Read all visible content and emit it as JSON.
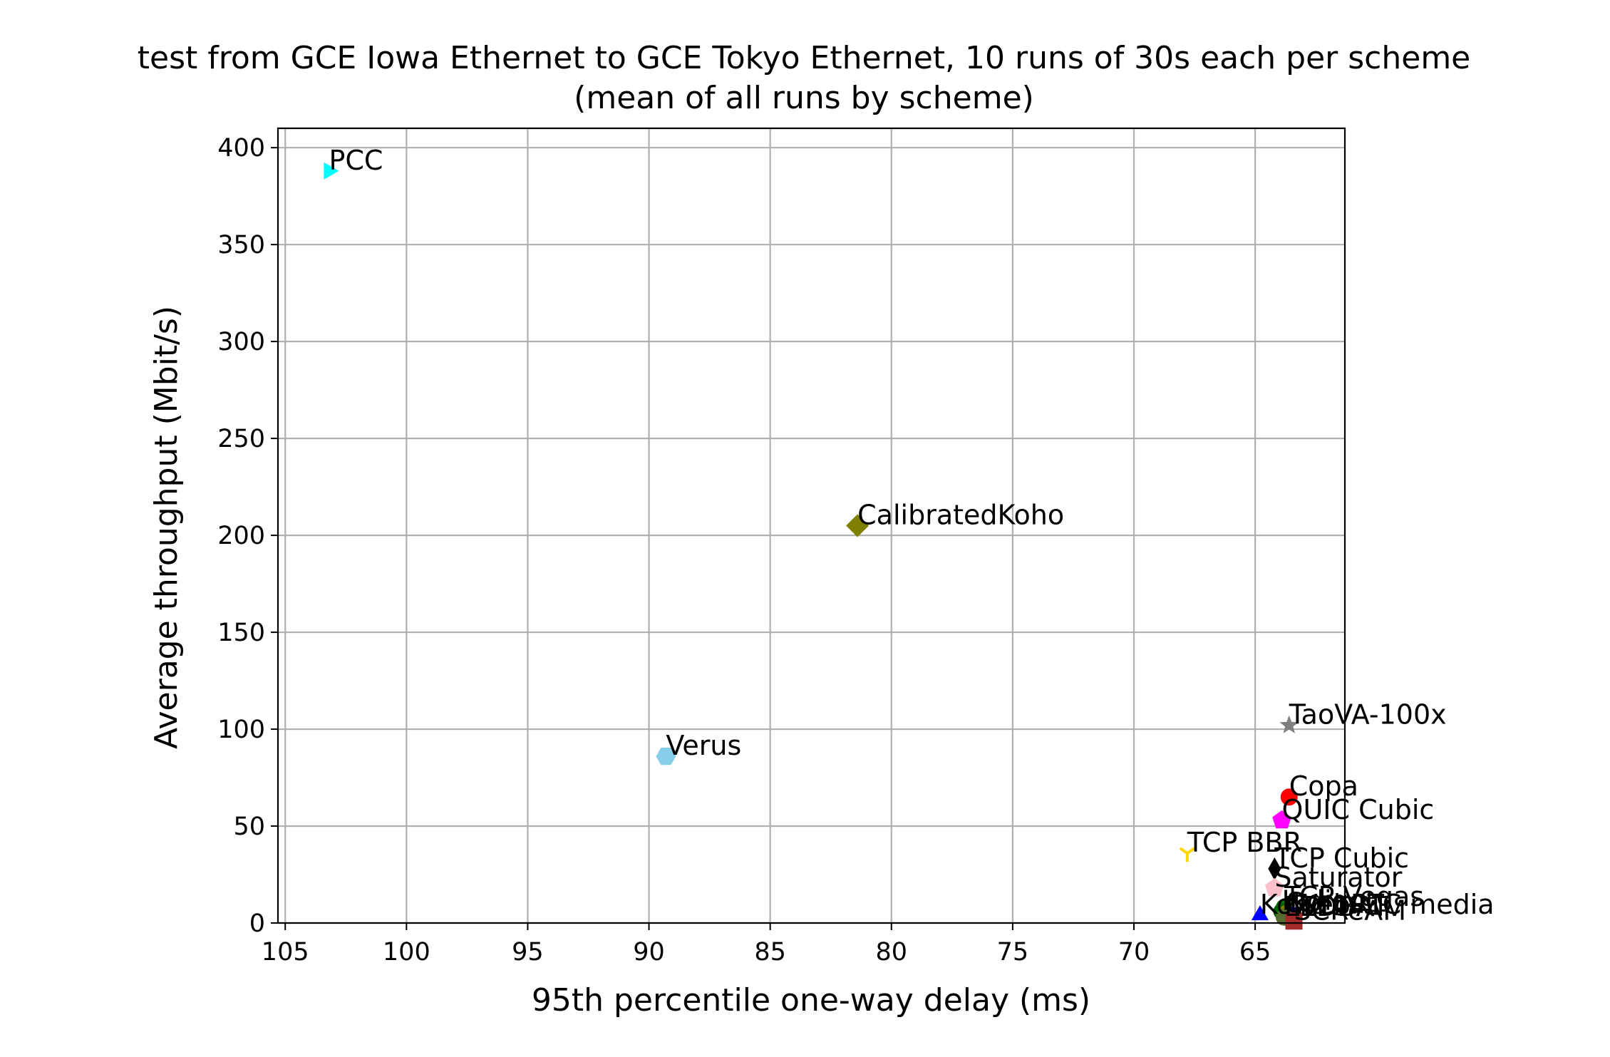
{
  "chart_data": {
    "type": "scatter",
    "title": "test from GCE Iowa Ethernet to GCE Tokyo Ethernet, 10 runs of 30s each per scheme",
    "subtitle": "(mean of all runs by scheme)",
    "xlabel": "95th percentile one-way delay (ms)",
    "ylabel": "Average throughput (Mbit/s)",
    "xlim": [
      105.3,
      61.3
    ],
    "ylim": [
      0,
      410
    ],
    "x_inverted": true,
    "grid": true,
    "xticks": [
      105,
      100,
      95,
      90,
      85,
      80,
      75,
      70,
      65
    ],
    "yticks": [
      0,
      50,
      100,
      150,
      200,
      250,
      300,
      350,
      400
    ],
    "series": [
      {
        "name": "PCC",
        "x": 103.2,
        "y": 388,
        "marker": "triangle-right",
        "color": "#00ffff"
      },
      {
        "name": "CalibratedKoho",
        "x": 81.4,
        "y": 205,
        "marker": "diamond",
        "color": "#808000"
      },
      {
        "name": "Verus",
        "x": 89.3,
        "y": 86,
        "marker": "hexagon",
        "color": "#87ceeb"
      },
      {
        "name": "TaoVA-100x",
        "x": 63.6,
        "y": 102,
        "marker": "star",
        "color": "#808080"
      },
      {
        "name": "Copa",
        "x": 63.6,
        "y": 65,
        "marker": "circle",
        "color": "#ff0000"
      },
      {
        "name": "QUIC Cubic",
        "x": 63.9,
        "y": 53,
        "marker": "pentagon",
        "color": "#ff00ff"
      },
      {
        "name": "TCP BBR",
        "x": 67.8,
        "y": 36,
        "marker": "tri-down",
        "color": "#ffd700"
      },
      {
        "name": "TCP Cubic",
        "x": 64.2,
        "y": 28,
        "marker": "thin-diamond",
        "color": "#000000"
      },
      {
        "name": "Saturator",
        "x": 64.2,
        "y": 18,
        "marker": "pentagon",
        "color": "#ffc0cb"
      },
      {
        "name": "TCP Vegas",
        "x": 63.8,
        "y": 8,
        "marker": "circle",
        "color": "#008000"
      },
      {
        "name": "Indigo",
        "x": 63.9,
        "y": 6,
        "marker": "circle",
        "color": "#006400"
      },
      {
        "name": "Sprout",
        "x": 63.7,
        "y": 5,
        "marker": "circle",
        "color": "#808000"
      },
      {
        "name": "WebRTC media",
        "x": 63.5,
        "y": 4,
        "marker": "circle",
        "color": "#00008b"
      },
      {
        "name": "LEDBAT",
        "x": 63.8,
        "y": 3,
        "marker": "circle",
        "color": "#556b2f"
      },
      {
        "name": "SCReAM",
        "x": 63.4,
        "y": 1,
        "marker": "square",
        "color": "#a52a2a"
      },
      {
        "name": "Koho",
        "x": 64.8,
        "y": 4,
        "marker": "triangle-up",
        "color": "#0000ff"
      }
    ]
  }
}
